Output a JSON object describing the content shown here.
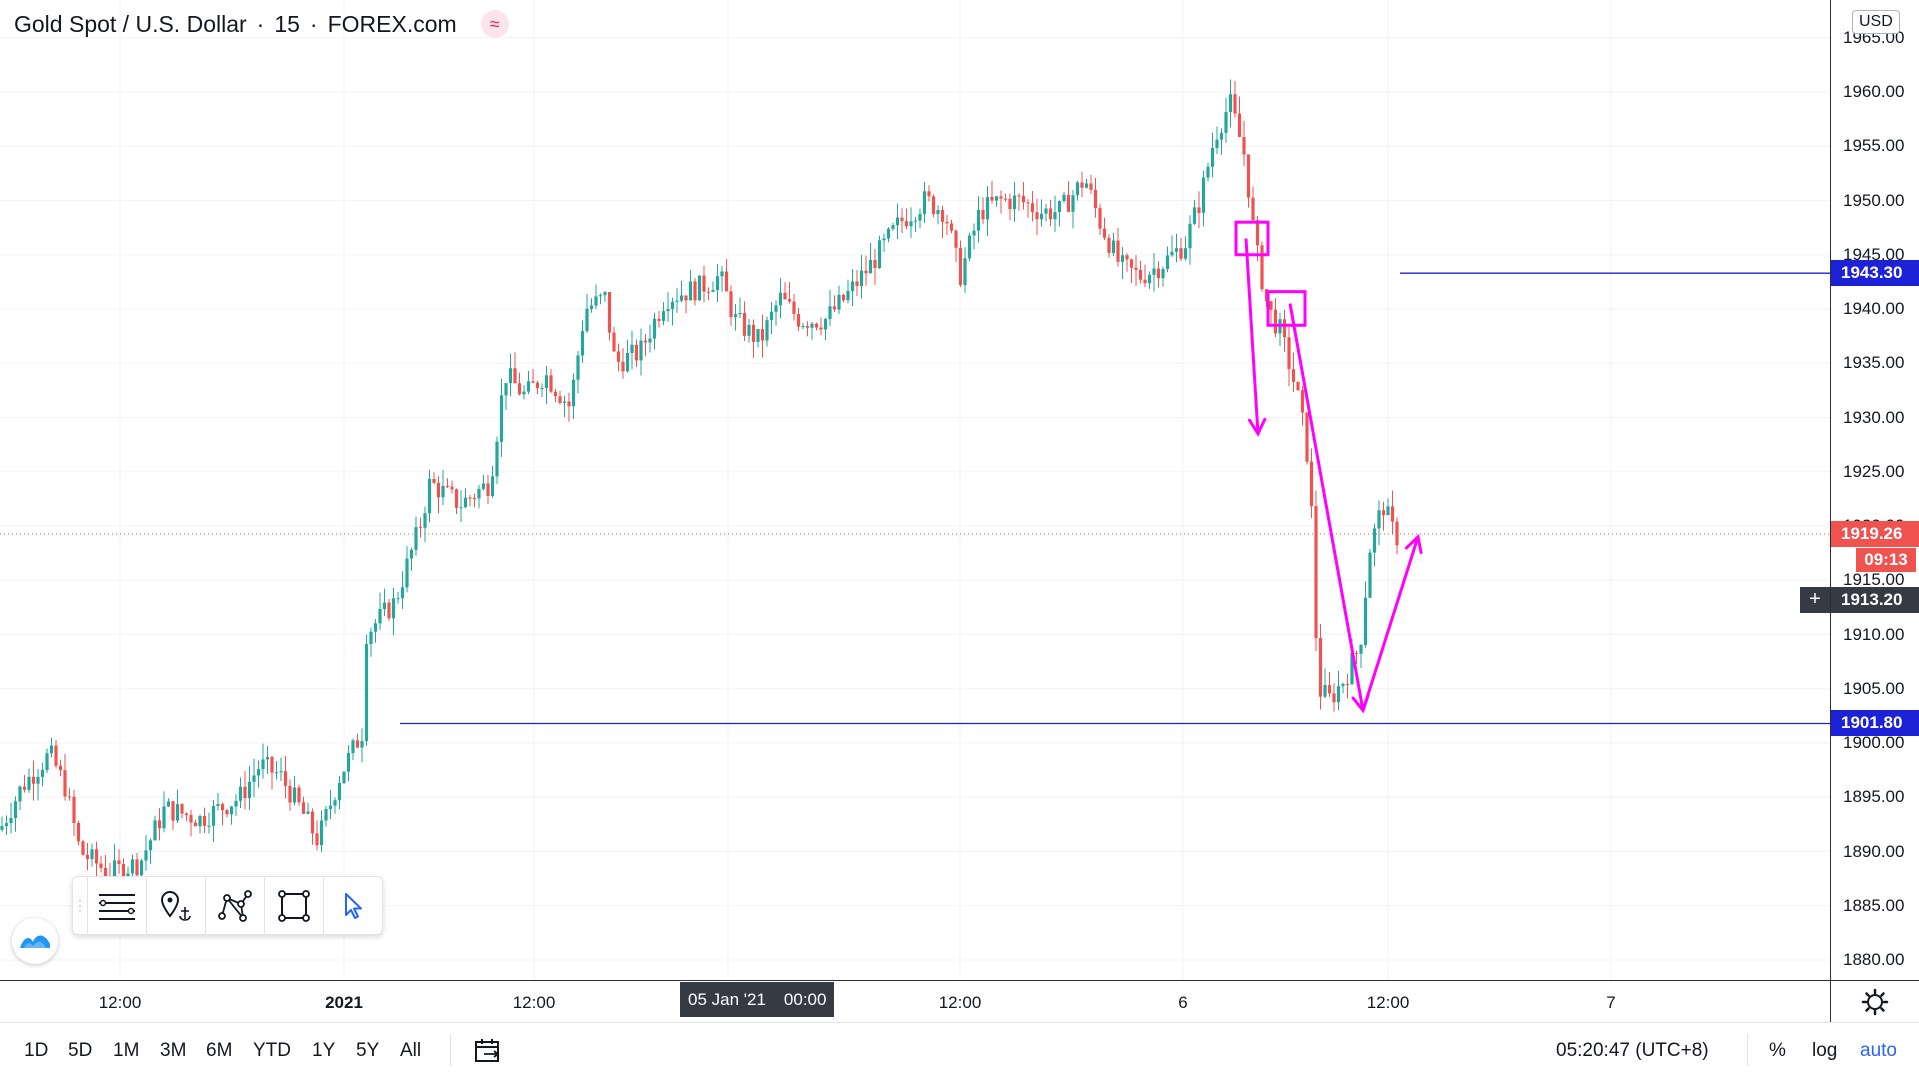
{
  "legend": {
    "symbol": "Gold Spot / U.S. Dollar",
    "interval": "15",
    "source": "FOREX.com",
    "sep": "·",
    "slash_icon": "≈"
  },
  "currency": "USD",
  "price_ticks": [
    "1965.00",
    "1960.00",
    "1955.00",
    "1950.00",
    "1945.00",
    "1940.00",
    "1935.00",
    "1930.00",
    "1925.00",
    "1920.00",
    "1915.00",
    "1910.00",
    "1905.00",
    "1900.00",
    "1895.00",
    "1890.00",
    "1885.00",
    "1880.00"
  ],
  "price_tags": {
    "level_upper": "1943.30",
    "current": "1919.26",
    "countdown": "09:13",
    "crosshair": "1913.20",
    "level_lower": "1901.80"
  },
  "time_ticks": [
    "12:00",
    "2021",
    "12:00",
    "12:00",
    "6",
    "12:00",
    "7"
  ],
  "time_highlight": {
    "date": "05 Jan '21",
    "time": "00:00"
  },
  "ranges": [
    "1D",
    "5D",
    "1M",
    "3M",
    "6M",
    "YTD",
    "1Y",
    "5Y",
    "All"
  ],
  "clock": "05:20:47 (UTC+8)",
  "scale_options": {
    "percent": "%",
    "log": "log",
    "auto": "auto"
  },
  "colors": {
    "up": "#26a69a",
    "down": "#ef5350",
    "level": "#1e22d6",
    "annotation": "#ff00ff",
    "current_price": "#ef5350"
  },
  "icons": [
    "trend-lines-icon",
    "anchor-pin-icon",
    "nodes-icon",
    "rectangle-icon",
    "cursor-arrow-icon",
    "tradingview-logo-icon",
    "calendar-range-icon",
    "gear-icon"
  ],
  "chart_data": {
    "type": "candlestick",
    "instrument": "Gold Spot / U.S. Dollar",
    "interval": "15",
    "ylim": [
      1878,
      1968
    ],
    "horizontal_levels": [
      1943.3,
      1901.8
    ],
    "current_price": 1919.26,
    "path": [
      [
        0,
        1892
      ],
      [
        22,
        1896
      ],
      [
        50,
        1899
      ],
      [
        65,
        1896
      ],
      [
        80,
        1890
      ],
      [
        110,
        1888
      ],
      [
        140,
        1889
      ],
      [
        165,
        1894
      ],
      [
        200,
        1893
      ],
      [
        240,
        1895
      ],
      [
        260,
        1898
      ],
      [
        280,
        1897
      ],
      [
        300,
        1894
      ],
      [
        318,
        1891
      ],
      [
        340,
        1897
      ],
      [
        362,
        1901
      ],
      [
        365,
        1910
      ],
      [
        395,
        1913
      ],
      [
        420,
        1920
      ],
      [
        430,
        1924
      ],
      [
        460,
        1922
      ],
      [
        490,
        1924
      ],
      [
        505,
        1934
      ],
      [
        525,
        1932
      ],
      [
        545,
        1934
      ],
      [
        570,
        1931
      ],
      [
        585,
        1940
      ],
      [
        605,
        1941
      ],
      [
        615,
        1935
      ],
      [
        640,
        1936
      ],
      [
        665,
        1941
      ],
      [
        700,
        1942
      ],
      [
        720,
        1943
      ],
      [
        735,
        1939
      ],
      [
        760,
        1937
      ],
      [
        780,
        1941
      ],
      [
        800,
        1939
      ],
      [
        825,
        1939
      ],
      [
        845,
        1941
      ],
      [
        870,
        1944
      ],
      [
        900,
        1948
      ],
      [
        925,
        1950
      ],
      [
        945,
        1949
      ],
      [
        960,
        1943
      ],
      [
        980,
        1949
      ],
      [
        1000,
        1950
      ],
      [
        1020,
        1950
      ],
      [
        1040,
        1949
      ],
      [
        1060,
        1949
      ],
      [
        1085,
        1952
      ],
      [
        1100,
        1948
      ],
      [
        1120,
        1944
      ],
      [
        1140,
        1943
      ],
      [
        1160,
        1944
      ],
      [
        1185,
        1946
      ],
      [
        1200,
        1950
      ],
      [
        1215,
        1956
      ],
      [
        1230,
        1959
      ],
      [
        1245,
        1954
      ],
      [
        1255,
        1946
      ],
      [
        1268,
        1940
      ],
      [
        1280,
        1938
      ],
      [
        1292,
        1934
      ],
      [
        1300,
        1931
      ],
      [
        1310,
        1925
      ],
      [
        1318,
        1905
      ],
      [
        1330,
        1904
      ],
      [
        1345,
        1906
      ],
      [
        1360,
        1909
      ],
      [
        1370,
        1918
      ],
      [
        1383,
        1922
      ],
      [
        1395,
        1919
      ],
      [
        1405,
        1919
      ]
    ],
    "annotations": {
      "boxes": [
        {
          "x1": 1236,
          "x2": 1268,
          "p1": 1948,
          "p2": 1945
        },
        {
          "x1": 1268,
          "x2": 1305,
          "p1": 1941.6,
          "p2": 1938.5
        }
      ],
      "arrows": [
        {
          "from": [
            1246,
            1946.5
          ],
          "to": [
            1258,
            1928.5
          ]
        },
        {
          "from": [
            1290,
            1940.5
          ],
          "to": [
            1363,
            1903
          ],
          "then": [
            1418,
            1919
          ]
        }
      ]
    }
  }
}
